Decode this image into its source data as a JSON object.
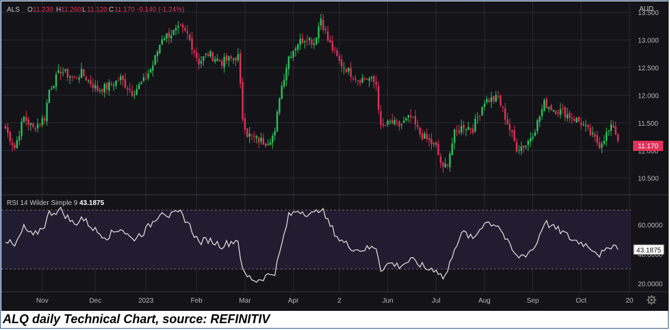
{
  "caption": "ALQ daily Technical Chart, source: REFINITIV",
  "header": {
    "symbol": "ALS",
    "open_label": "O",
    "open": "11.230",
    "high_label": "H",
    "high": "11.260",
    "low_label": "L",
    "low": "11.120",
    "close_label": "C",
    "close": "11.170",
    "change": "-0.140 (-1.24%)"
  },
  "currency": "AUD",
  "last_price_label": "11.170",
  "rsi_label": "RSI 14 Wilder Simple 9",
  "rsi_value_label": "43.1875",
  "colors": {
    "background": "#131318",
    "up": "#2bc25a",
    "down": "#e0325a",
    "rsi_line": "#d9d9d9",
    "rsi_band": "#221c30",
    "price_tag": "#e0325a",
    "grid": "#2a2a32",
    "text": "#b8b8b8"
  },
  "chart_data": [
    {
      "type": "candlestick",
      "title": "ALS",
      "ylim": [
        10.2,
        13.65
      ],
      "y_ticks": [
        "13.500",
        "13.000",
        "12.500",
        "12.000",
        "11.500",
        "11.000",
        "10.500"
      ],
      "y_tick_values": [
        13.5,
        13.0,
        12.5,
        12.0,
        11.5,
        11.0,
        10.5
      ],
      "x_ticks": [
        "Nov",
        "Dec",
        "2023",
        "Feb",
        "Mar",
        "Apr",
        "2",
        "Jun",
        "Jul",
        "Aug",
        "Sep",
        "Oct",
        "20"
      ],
      "x_tick_index": [
        16,
        39,
        61,
        83,
        104,
        125,
        145,
        166,
        187,
        208,
        229,
        250,
        271
      ],
      "last_close": 11.17,
      "anchors": [
        [
          0,
          11.4
        ],
        [
          4,
          11.05
        ],
        [
          8,
          11.6
        ],
        [
          12,
          11.4
        ],
        [
          17,
          11.6
        ],
        [
          19,
          12.1
        ],
        [
          24,
          12.45
        ],
        [
          30,
          12.3
        ],
        [
          33,
          12.4
        ],
        [
          40,
          12.1
        ],
        [
          44,
          12.15
        ],
        [
          50,
          12.3
        ],
        [
          55,
          12.05
        ],
        [
          60,
          12.25
        ],
        [
          64,
          12.55
        ],
        [
          68,
          13.05
        ],
        [
          71,
          13.1
        ],
        [
          76,
          13.2
        ],
        [
          79,
          13.1
        ],
        [
          84,
          12.6
        ],
        [
          88,
          12.75
        ],
        [
          94,
          12.6
        ],
        [
          101,
          12.7
        ],
        [
          103,
          11.6
        ],
        [
          105,
          11.3
        ],
        [
          109,
          11.2
        ],
        [
          113,
          11.15
        ],
        [
          117,
          11.3
        ],
        [
          119,
          12.0
        ],
        [
          123,
          12.7
        ],
        [
          127,
          12.95
        ],
        [
          131,
          13.05
        ],
        [
          134,
          12.95
        ],
        [
          137,
          13.4
        ],
        [
          140,
          13.0
        ],
        [
          145,
          12.6
        ],
        [
          150,
          12.4
        ],
        [
          153,
          12.3
        ],
        [
          158,
          12.3
        ],
        [
          161,
          12.2
        ],
        [
          163,
          11.4
        ],
        [
          167,
          11.5
        ],
        [
          171,
          11.45
        ],
        [
          176,
          11.6
        ],
        [
          180,
          11.3
        ],
        [
          183,
          11.2
        ],
        [
          187,
          11.05
        ],
        [
          190,
          10.65
        ],
        [
          192,
          10.8
        ],
        [
          195,
          11.3
        ],
        [
          199,
          11.45
        ],
        [
          203,
          11.4
        ],
        [
          208,
          11.9
        ],
        [
          214,
          11.95
        ],
        [
          218,
          11.5
        ],
        [
          222,
          11.05
        ],
        [
          226,
          11.1
        ],
        [
          230,
          11.4
        ],
        [
          234,
          11.85
        ],
        [
          238,
          11.75
        ],
        [
          242,
          11.7
        ],
        [
          246,
          11.6
        ],
        [
          250,
          11.5
        ],
        [
          254,
          11.3
        ],
        [
          258,
          11.1
        ],
        [
          261,
          11.3
        ],
        [
          264,
          11.45
        ],
        [
          266,
          11.17
        ]
      ]
    },
    {
      "type": "line",
      "title": "RSI 14 Wilder Simple 9",
      "ylim": [
        15,
        80
      ],
      "y_ticks": [
        "60.0000",
        "40.0000",
        "20.0000"
      ],
      "y_tick_values": [
        60,
        40,
        20
      ],
      "band": [
        30,
        70
      ],
      "last_value": 43.1875,
      "anchors": [
        [
          0,
          50
        ],
        [
          4,
          45
        ],
        [
          8,
          58
        ],
        [
          12,
          52
        ],
        [
          17,
          60
        ],
        [
          19,
          68
        ],
        [
          24,
          70
        ],
        [
          30,
          60
        ],
        [
          33,
          65
        ],
        [
          40,
          55
        ],
        [
          44,
          52
        ],
        [
          50,
          58
        ],
        [
          55,
          50
        ],
        [
          60,
          55
        ],
        [
          64,
          62
        ],
        [
          68,
          70
        ],
        [
          71,
          66
        ],
        [
          76,
          68
        ],
        [
          79,
          62
        ],
        [
          84,
          48
        ],
        [
          88,
          50
        ],
        [
          94,
          46
        ],
        [
          101,
          50
        ],
        [
          103,
          28
        ],
        [
          105,
          25
        ],
        [
          109,
          22
        ],
        [
          113,
          25
        ],
        [
          117,
          28
        ],
        [
          119,
          40
        ],
        [
          123,
          66
        ],
        [
          127,
          70
        ],
        [
          131,
          68
        ],
        [
          134,
          67
        ],
        [
          137,
          72
        ],
        [
          140,
          62
        ],
        [
          145,
          50
        ],
        [
          150,
          45
        ],
        [
          153,
          43
        ],
        [
          158,
          44
        ],
        [
          161,
          45
        ],
        [
          163,
          30
        ],
        [
          167,
          34
        ],
        [
          171,
          32
        ],
        [
          176,
          36
        ],
        [
          180,
          33
        ],
        [
          183,
          30
        ],
        [
          187,
          30
        ],
        [
          190,
          24
        ],
        [
          192,
          28
        ],
        [
          195,
          45
        ],
        [
          199,
          55
        ],
        [
          203,
          50
        ],
        [
          208,
          62
        ],
        [
          214,
          60
        ],
        [
          218,
          48
        ],
        [
          222,
          38
        ],
        [
          226,
          40
        ],
        [
          230,
          45
        ],
        [
          234,
          62
        ],
        [
          238,
          58
        ],
        [
          242,
          55
        ],
        [
          246,
          50
        ],
        [
          250,
          48
        ],
        [
          254,
          45
        ],
        [
          258,
          40
        ],
        [
          261,
          42
        ],
        [
          264,
          48
        ],
        [
          266,
          43.19
        ]
      ]
    }
  ]
}
